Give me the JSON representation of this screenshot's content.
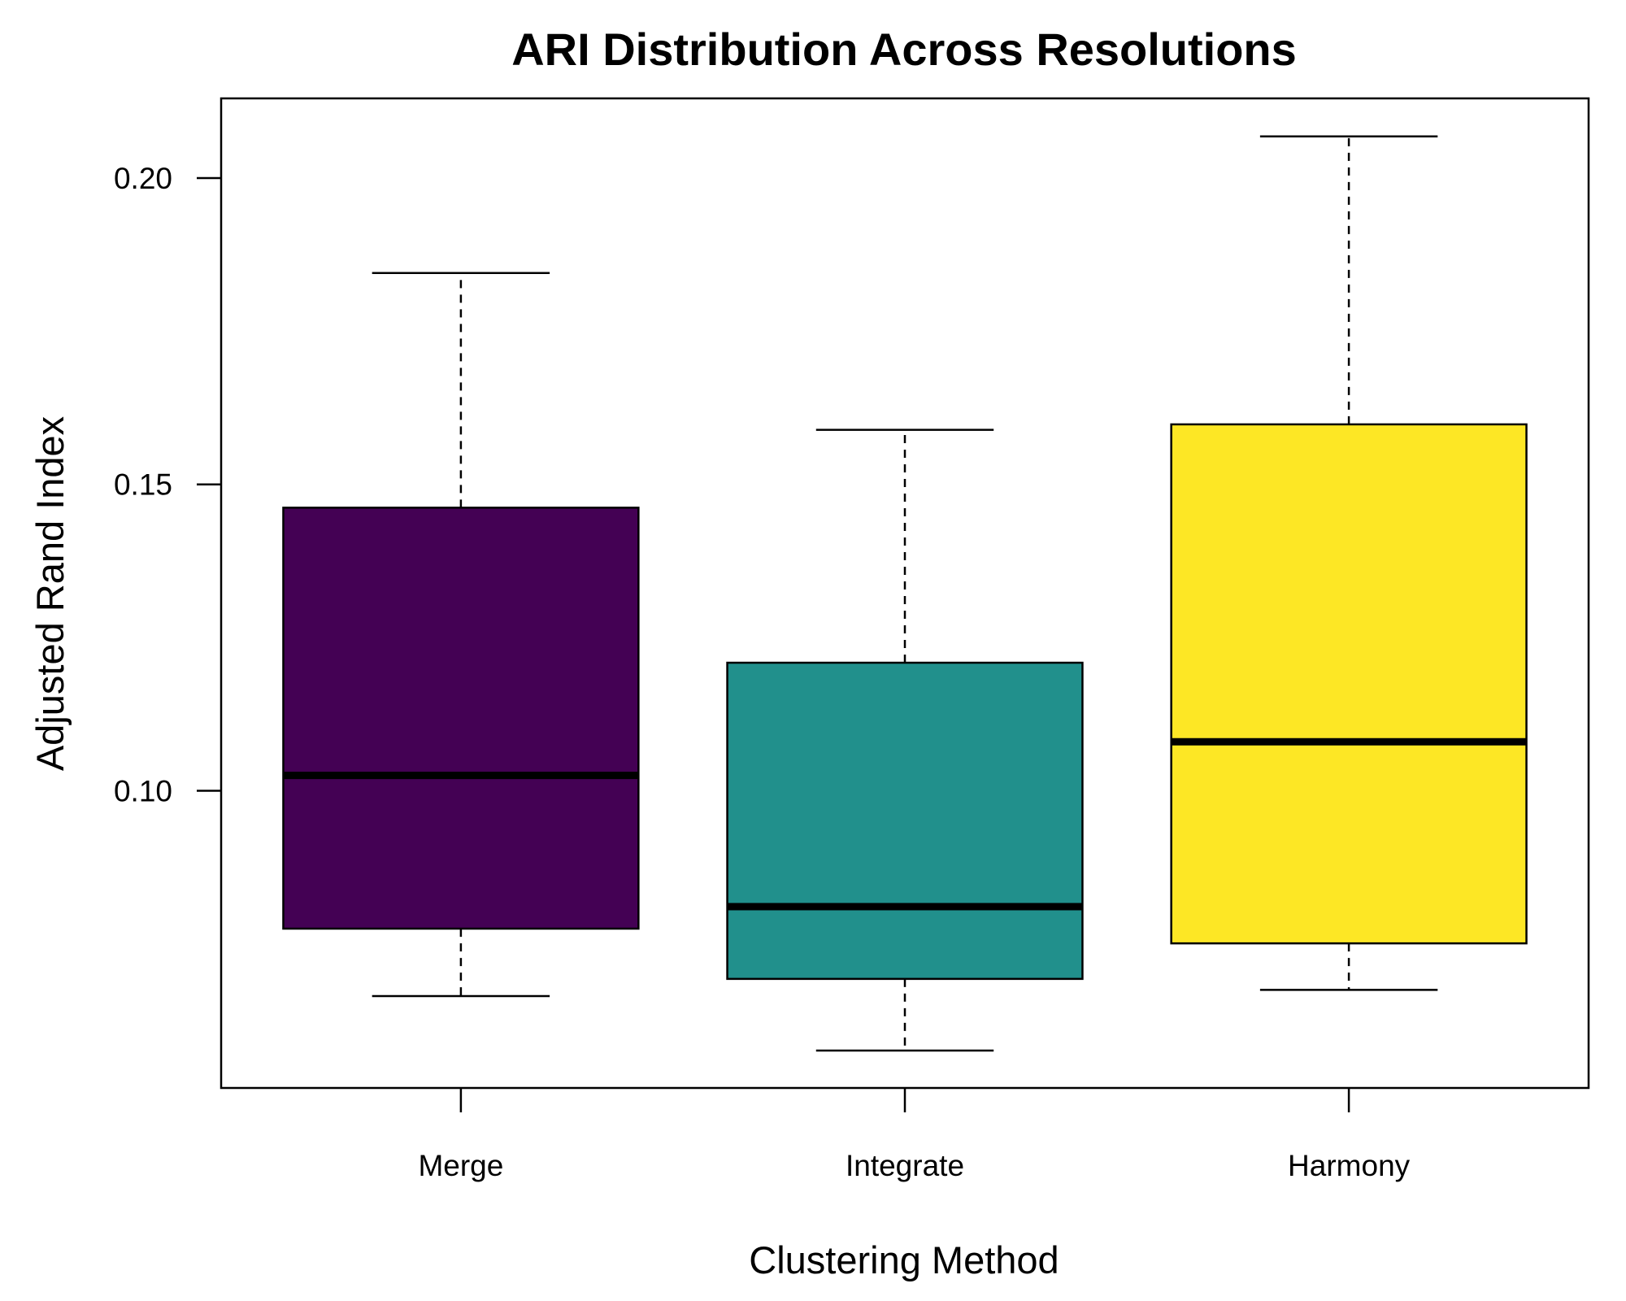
{
  "chart_data": {
    "type": "boxplot",
    "title": "ARI Distribution Across Resolutions",
    "xlabel": "Clustering Method",
    "ylabel": "Adjusted Rand Index",
    "ylim": [
      0.0515,
      0.213
    ],
    "yticks": [
      0.1,
      0.15,
      0.2
    ],
    "ytick_labels": [
      "0.10",
      "0.15",
      "0.20"
    ],
    "grid": false,
    "legend": "none",
    "categories": [
      "Merge",
      "Integrate",
      "Harmony"
    ],
    "series": [
      {
        "category": "Merge",
        "min": 0.0665,
        "q1": 0.0775,
        "median": 0.1025,
        "q3": 0.1462,
        "max": 0.1845,
        "color": "#440154"
      },
      {
        "category": "Integrate",
        "min": 0.0576,
        "q1": 0.0693,
        "median": 0.0811,
        "q3": 0.1209,
        "max": 0.1589,
        "color": "#21908C"
      },
      {
        "category": "Harmony",
        "min": 0.0675,
        "q1": 0.0751,
        "median": 0.108,
        "q3": 0.1598,
        "max": 0.2068,
        "color": "#FDE725"
      }
    ]
  }
}
